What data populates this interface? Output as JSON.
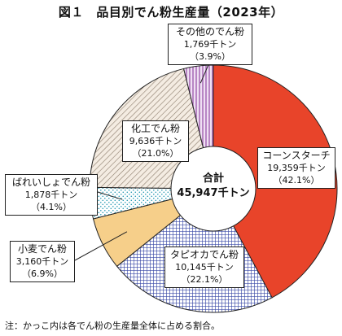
{
  "chart_data": {
    "type": "pie",
    "title": "図１　品目別でん粉生産量（2023年）",
    "center_label": {
      "title": "合計",
      "value": "45,947千トン"
    },
    "slices": [
      {
        "key": "cornstarch",
        "name": "コーンスターチ",
        "value": 19359,
        "value_label": "19,359千トン",
        "percent": 42.1,
        "percent_label": "（42.1%）",
        "color": "#e8442a",
        "pattern": "solid"
      },
      {
        "key": "tapioca",
        "name": "タピオカでん粉",
        "value": 10145,
        "value_label": "10,145千トン",
        "percent": 22.1,
        "percent_label": "（22.1%）",
        "color": "#3b4ba8",
        "pattern": "grid"
      },
      {
        "key": "wheat",
        "name": "小麦でん粉",
        "value": 3160,
        "value_label": "3,160千トン",
        "percent": 6.9,
        "percent_label": "（6.9%）",
        "color": "#f6cf8a",
        "pattern": "solid"
      },
      {
        "key": "potato",
        "name": "ばれいしょでん粉",
        "value": 1878,
        "value_label": "1,878千トン",
        "percent": 4.1,
        "percent_label": "（4.1%）",
        "color": "#2a9bb5",
        "pattern": "dots"
      },
      {
        "key": "modified",
        "name": "化工でん粉",
        "value": 9636,
        "value_label": "9,636千トン",
        "percent": 21.0,
        "percent_label": "（21.0%）",
        "color": "#8a7a6a",
        "pattern": "diagonal"
      },
      {
        "key": "other",
        "name": "その他のでん粉",
        "value": 1769,
        "value_label": "1,769千トン",
        "percent": 3.9,
        "percent_label": "（3.9%）",
        "color": "#a05fb0",
        "pattern": "stripes"
      }
    ],
    "total": 45947,
    "footnote": "注：かっこ内は各でん粉の生産量全体に占める割合。"
  }
}
